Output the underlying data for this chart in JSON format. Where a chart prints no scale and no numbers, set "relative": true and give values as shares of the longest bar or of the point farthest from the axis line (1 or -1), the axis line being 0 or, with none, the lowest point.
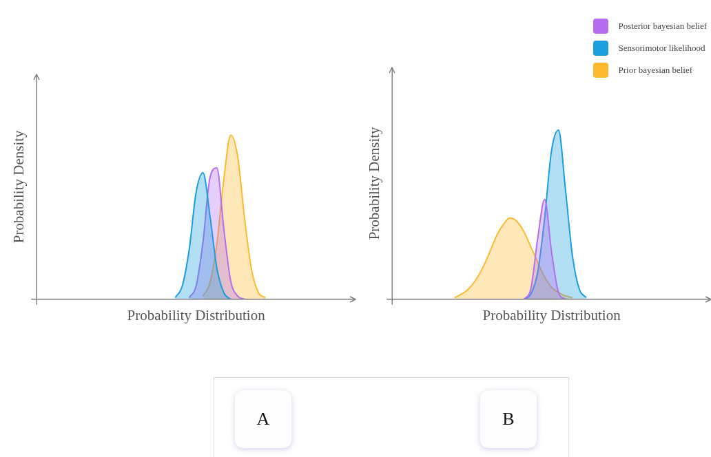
{
  "chart_data": [
    {
      "type": "area",
      "xlabel": "Probability Distribution",
      "ylabel": "Probability Density",
      "relative": true,
      "grid": false,
      "legend": false,
      "annotations": [
        "A"
      ],
      "categories": [
        null,
        null,
        null,
        null,
        null,
        null,
        null,
        null,
        null,
        null,
        null,
        null,
        null,
        null,
        null,
        null,
        null,
        null,
        null,
        null,
        null,
        null,
        null,
        null,
        null,
        null,
        null,
        null,
        null,
        null,
        null,
        null,
        null,
        null,
        null,
        null,
        null,
        null,
        null,
        null,
        null,
        null,
        null,
        null,
        null,
        null,
        null
      ],
      "series": [
        {
          "color": "#1a9ee0",
          "values": [
            null,
            null,
            null,
            null,
            null,
            null,
            null,
            null,
            null,
            null,
            null,
            null,
            null,
            null,
            null,
            null,
            null,
            null,
            null,
            null,
            0.01,
            0.08,
            0.3,
            0.65,
            0.77,
            0.51,
            0.19,
            0.04,
            0,
            null,
            null,
            null,
            null,
            null,
            null,
            null,
            null,
            null,
            null,
            null,
            null,
            null,
            null,
            null,
            null,
            null,
            null
          ]
        },
        {
          "color": "#b56cf0",
          "values": [
            null,
            null,
            null,
            null,
            null,
            null,
            null,
            null,
            null,
            null,
            null,
            null,
            null,
            null,
            null,
            null,
            null,
            null,
            null,
            null,
            null,
            null,
            0.01,
            0.08,
            0.35,
            0.74,
            0.8,
            0.43,
            0.11,
            0.02,
            0,
            null,
            null,
            null,
            null,
            null,
            null,
            null,
            null,
            null,
            null,
            null,
            null,
            null,
            null,
            null,
            null
          ]
        },
        {
          "color": "#fdb92e",
          "values": [
            null,
            null,
            null,
            null,
            null,
            null,
            null,
            null,
            null,
            null,
            null,
            null,
            null,
            null,
            null,
            null,
            null,
            null,
            null,
            null,
            null,
            null,
            null,
            null,
            0.02,
            0.1,
            0.34,
            0.73,
            1,
            0.87,
            0.49,
            0.18,
            0.04,
            0.01,
            null,
            null,
            null,
            null,
            null,
            null,
            null,
            null,
            null,
            null,
            null,
            null,
            null
          ]
        }
      ]
    },
    {
      "type": "area",
      "xlabel": "Probability Distribution",
      "ylabel": "Probability Density",
      "relative": true,
      "grid": false,
      "legend": "top right",
      "annotations": [
        "B"
      ],
      "categories": [
        null,
        null,
        null,
        null,
        null,
        null,
        null,
        null,
        null,
        null,
        null,
        null,
        null,
        null,
        null,
        null,
        null,
        null,
        null,
        null,
        null,
        null,
        null,
        null,
        null,
        null,
        null,
        null,
        null,
        null,
        null,
        null,
        null,
        null,
        null,
        null,
        null,
        null,
        null,
        null,
        null,
        null,
        null,
        null,
        null,
        null,
        null
      ],
      "series": [
        {
          "name": "Posterior bayesian belief",
          "color": "#b56cf0",
          "values": [
            null,
            null,
            null,
            null,
            null,
            null,
            null,
            null,
            null,
            null,
            null,
            null,
            null,
            null,
            null,
            null,
            null,
            null,
            null,
            0,
            0.06,
            0.36,
            0.59,
            0.28,
            0.04,
            0,
            null,
            null,
            null,
            null,
            null,
            null,
            null,
            null,
            null,
            null,
            null,
            null,
            null,
            null,
            null,
            null,
            null,
            null,
            null,
            null,
            null
          ]
        },
        {
          "name": "Sensorimotor likelihood",
          "color": "#1a9ee0",
          "values": [
            null,
            null,
            null,
            null,
            null,
            null,
            null,
            null,
            null,
            null,
            null,
            null,
            null,
            null,
            null,
            null,
            null,
            null,
            null,
            0,
            0.03,
            0.16,
            0.48,
            0.88,
            1,
            0.65,
            0.26,
            0.06,
            0.01,
            null,
            null,
            null,
            null,
            null,
            null,
            null,
            null,
            null,
            null,
            null,
            null,
            null,
            null,
            null,
            null,
            null,
            null
          ]
        },
        {
          "name": "Prior bayesian belief",
          "color": "#fdb92e",
          "values": [
            null,
            null,
            null,
            null,
            null,
            null,
            null,
            null,
            null,
            0.01,
            0.03,
            0.06,
            0.11,
            0.18,
            0.27,
            0.37,
            0.44,
            0.48,
            0.46,
            0.4,
            0.31,
            0.22,
            0.13,
            0.07,
            0.04,
            0.02,
            0.01,
            null,
            null,
            null,
            null,
            null,
            null,
            null,
            null,
            null,
            null,
            null,
            null,
            null,
            null,
            null,
            null,
            null,
            null,
            null,
            null
          ]
        }
      ]
    }
  ]
}
